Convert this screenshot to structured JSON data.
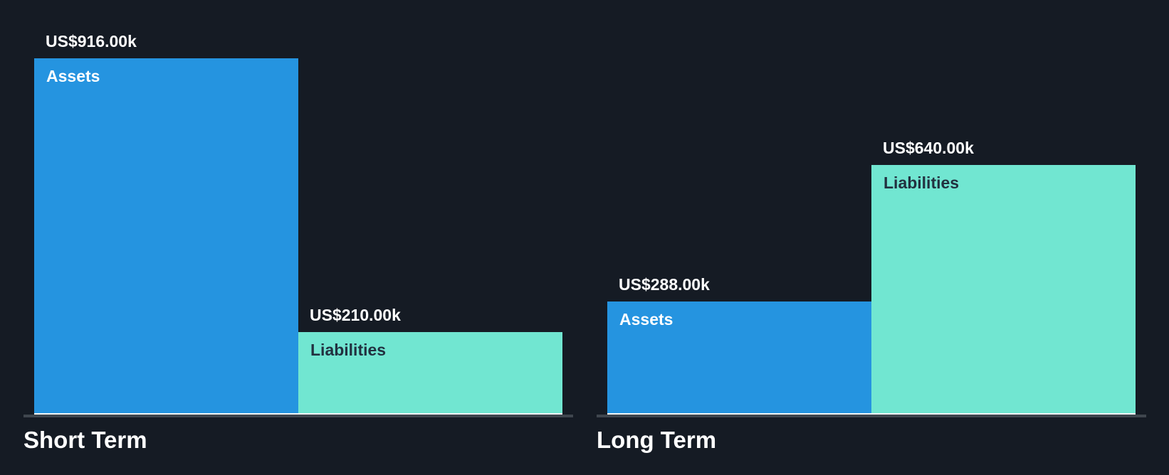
{
  "page": {
    "background_color": "#151b24"
  },
  "chart_data": {
    "type": "bar",
    "title": "",
    "xlabel": "",
    "ylabel": "",
    "ylim": [
      0,
      916000
    ],
    "grid": false,
    "legend": "none (category labels rendered inside bars)",
    "value_format": "US$ thousands (k)",
    "groups": [
      {
        "label": "Short Term",
        "bars": [
          {
            "category": "Assets",
            "value": 916000,
            "value_label": "US$916.00k",
            "bar_color": "#2594e0",
            "category_label_color": "#ffffff"
          },
          {
            "category": "Liabilities",
            "value": 210000,
            "value_label": "US$210.00k",
            "bar_color": "#71e6d1",
            "category_label_color": "#223140"
          }
        ]
      },
      {
        "label": "Long Term",
        "bars": [
          {
            "category": "Assets",
            "value": 288000,
            "value_label": "US$288.00k",
            "bar_color": "#2594e0",
            "category_label_color": "#ffffff"
          },
          {
            "category": "Liabilities",
            "value": 640000,
            "value_label": "US$640.00k",
            "bar_color": "#71e6d1",
            "category_label_color": "#223140"
          }
        ]
      }
    ],
    "colors": {
      "background": "#151b24",
      "assets_bar": "#2594e0",
      "liabilities_bar": "#71e6d1",
      "value_label_text": "#ffffff",
      "group_label_text": "#ffffff",
      "baseline_light": "#f2f5f7",
      "axis_line": "#3f464e"
    }
  }
}
